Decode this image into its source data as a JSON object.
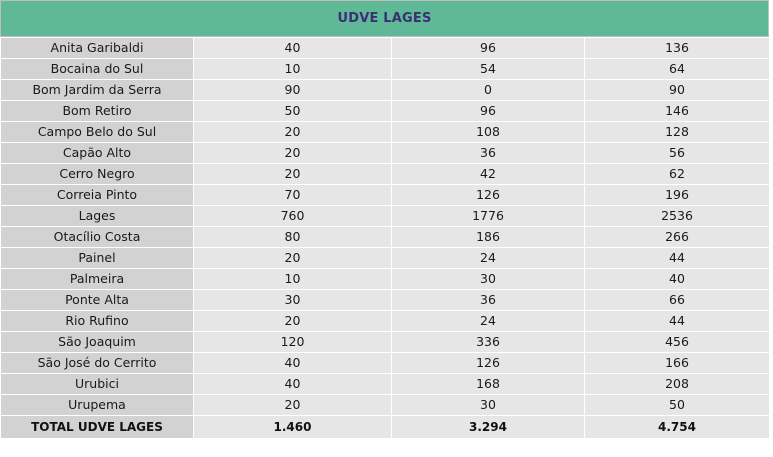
{
  "title": "UDVE LAGES",
  "rows": [
    {
      "name": "Anita Garibaldi",
      "a": "40",
      "b": "96",
      "c": "136"
    },
    {
      "name": "Bocaina do Sul",
      "a": "10",
      "b": "54",
      "c": "64"
    },
    {
      "name": "Bom Jardim da Serra",
      "a": "90",
      "b": "0",
      "c": "90"
    },
    {
      "name": "Bom Retiro",
      "a": "50",
      "b": "96",
      "c": "146"
    },
    {
      "name": "Campo Belo do Sul",
      "a": "20",
      "b": "108",
      "c": "128"
    },
    {
      "name": "Capão Alto",
      "a": "20",
      "b": "36",
      "c": "56"
    },
    {
      "name": "Cerro Negro",
      "a": "20",
      "b": "42",
      "c": "62"
    },
    {
      "name": "Correia Pinto",
      "a": "70",
      "b": "126",
      "c": "196"
    },
    {
      "name": "Lages",
      "a": "760",
      "b": "1776",
      "c": "2536"
    },
    {
      "name": "Otacílio Costa",
      "a": "80",
      "b": "186",
      "c": "266"
    },
    {
      "name": "Painel",
      "a": "20",
      "b": "24",
      "c": "44"
    },
    {
      "name": "Palmeira",
      "a": "10",
      "b": "30",
      "c": "40"
    },
    {
      "name": "Ponte Alta",
      "a": "30",
      "b": "36",
      "c": "66"
    },
    {
      "name": "Rio Rufino",
      "a": "20",
      "b": "24",
      "c": "44"
    },
    {
      "name": "São Joaquim",
      "a": "120",
      "b": "336",
      "c": "456"
    },
    {
      "name": "São José do Cerrito",
      "a": "40",
      "b": "126",
      "c": "166"
    },
    {
      "name": "Urubici",
      "a": "40",
      "b": "168",
      "c": "208"
    },
    {
      "name": "Urupema",
      "a": "20",
      "b": "30",
      "c": "50"
    }
  ],
  "total": {
    "name": "TOTAL UDVE LAGES",
    "a": "1.460",
    "b": "3.294",
    "c": "4.754"
  },
  "colors": {
    "header_bg": "#5fb896",
    "header_text": "#3b2f74",
    "name_cell": "#d2d2d2",
    "value_cell": "#e6e6e6"
  }
}
